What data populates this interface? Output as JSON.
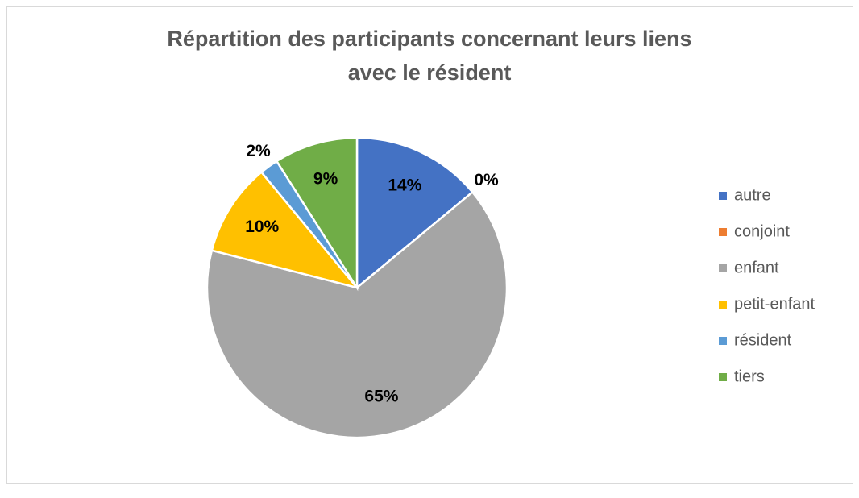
{
  "chart_data": {
    "type": "pie",
    "title": [
      "Répartition des participants concernant leurs liens",
      "avec le résident"
    ],
    "categories": [
      "autre",
      "conjoint",
      "enfant",
      "petit-enfant",
      "résident",
      "tiers"
    ],
    "values": [
      14,
      0,
      65,
      10,
      2,
      9
    ],
    "value_labels": [
      "14%",
      "0%",
      "65%",
      "10%",
      "2%",
      "9%"
    ],
    "colors": [
      "#4472c4",
      "#ed7d31",
      "#a5a5a5",
      "#ffc000",
      "#5b9bd5",
      "#70ad47"
    ],
    "legend": "right"
  }
}
